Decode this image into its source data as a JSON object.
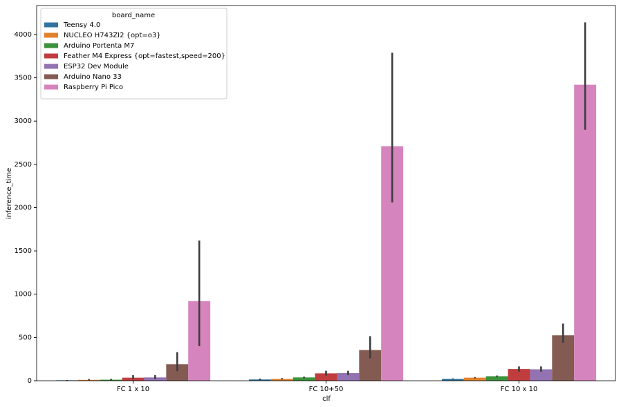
{
  "chart_data": {
    "type": "bar",
    "x_label": "clf",
    "y_label": "inference_time",
    "categories": [
      "FC 1 x 10",
      "FC 10+50",
      "FC 10 x 10"
    ],
    "ylim": [
      0,
      4335
    ],
    "yticks": [
      0,
      500,
      1000,
      1500,
      2000,
      2500,
      3000,
      3500,
      4000
    ],
    "legend_title": "board_name",
    "legend_position": "upper left",
    "series": [
      {
        "name": "Teensy 4.0",
        "color": "#3274a1",
        "values": [
          5,
          15,
          22
        ],
        "ci": [
          [
            2,
            8
          ],
          [
            8,
            25
          ],
          [
            18,
            27
          ]
        ]
      },
      {
        "name": "NUCLEO H743ZI2 {opt=o3}",
        "color": "#e1812c",
        "values": [
          10,
          22,
          35
        ],
        "ci": [
          [
            5,
            20
          ],
          [
            15,
            30
          ],
          [
            28,
            42
          ]
        ]
      },
      {
        "name": "Arduino Portenta M7",
        "color": "#3a923a",
        "values": [
          12,
          38,
          52
        ],
        "ci": [
          [
            5,
            22
          ],
          [
            30,
            48
          ],
          [
            45,
            60
          ]
        ]
      },
      {
        "name": "Feather M4 Express {opt=fastest,speed=200}",
        "color": "#c03d3e",
        "values": [
          35,
          85,
          135
        ],
        "ci": [
          [
            15,
            65
          ],
          [
            60,
            115
          ],
          [
            105,
            165
          ]
        ]
      },
      {
        "name": "ESP32 Dev Module",
        "color": "#9372b2",
        "values": [
          38,
          88,
          132
        ],
        "ci": [
          [
            20,
            65
          ],
          [
            65,
            115
          ],
          [
            105,
            165
          ]
        ]
      },
      {
        "name": "Arduino Nano 33",
        "color": "#845b53",
        "values": [
          190,
          355,
          525
        ],
        "ci": [
          [
            110,
            330
          ],
          [
            260,
            515
          ],
          [
            440,
            660
          ]
        ]
      },
      {
        "name": "Raspberry Pi Pico",
        "color": "#d684bd",
        "values": [
          920,
          2710,
          3420
        ],
        "ci": [
          [
            400,
            1620
          ],
          [
            2060,
            3790
          ],
          [
            2900,
            4140
          ]
        ]
      }
    ]
  }
}
